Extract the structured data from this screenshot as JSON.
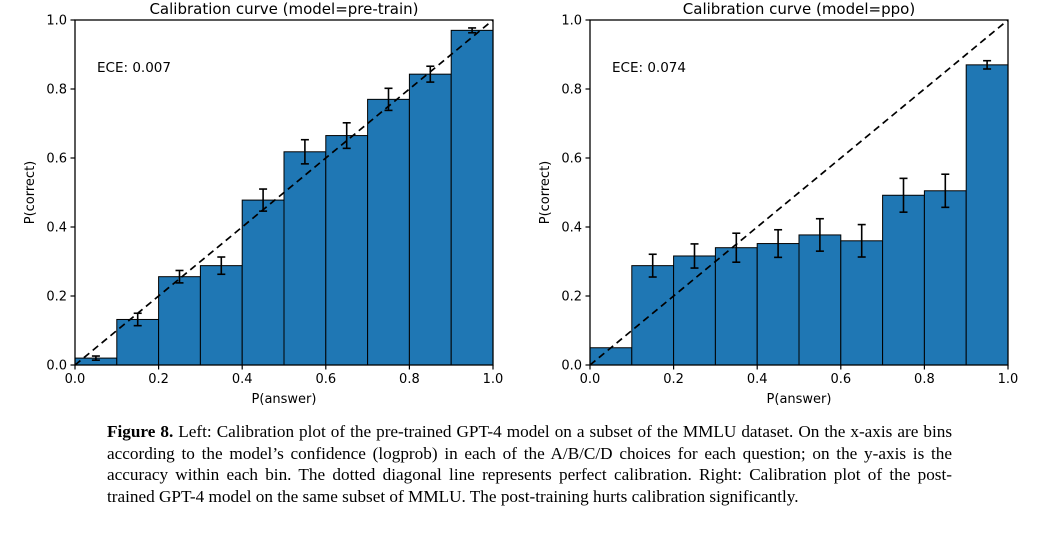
{
  "figure": {
    "label": "Figure 8.",
    "caption": "Left: Calibration plot of the pre-trained GPT-4 model on a subset of the MMLU dataset. On the x-axis are bins according to the model’s confidence (logprob) in each of the A/B/C/D choices for each question; on the y-axis is the accuracy within each bin. The dotted diagonal line represents perfect calibration. Right: Calibration plot of the post-trained GPT-4 model on the same subset of MMLU. The post-training hurts calibration significantly."
  },
  "colors": {
    "bar_fill": "#1f77b4",
    "bar_edge": "#000000",
    "diagonal": "#000000",
    "text": "#000000"
  },
  "chart_data": [
    {
      "type": "bar",
      "title": "Calibration curve (model=pre-train)",
      "annotation": "ECE: 0.007",
      "xlabel": "P(answer)",
      "ylabel": "P(correct)",
      "xlim": [
        0,
        1
      ],
      "ylim": [
        0,
        1
      ],
      "grid": false,
      "diagonal_reference_line": true,
      "bin_edges": [
        0.0,
        0.1,
        0.2,
        0.3,
        0.4,
        0.5,
        0.6,
        0.7,
        0.8,
        0.9,
        1.0
      ],
      "values": [
        0.02,
        0.132,
        0.256,
        0.288,
        0.478,
        0.618,
        0.665,
        0.77,
        0.843,
        0.97
      ],
      "errors": [
        0.006,
        0.018,
        0.018,
        0.025,
        0.032,
        0.035,
        0.037,
        0.032,
        0.023,
        0.007
      ],
      "xticks": [
        "0.0",
        "0.2",
        "0.4",
        "0.6",
        "0.8",
        "1.0"
      ],
      "yticks": [
        "0.0",
        "0.2",
        "0.4",
        "0.6",
        "0.8",
        "1.0"
      ]
    },
    {
      "type": "bar",
      "title": "Calibration curve (model=ppo)",
      "annotation": "ECE: 0.074",
      "xlabel": "P(answer)",
      "ylabel": "P(correct)",
      "xlim": [
        0,
        1
      ],
      "ylim": [
        0,
        1
      ],
      "grid": false,
      "diagonal_reference_line": true,
      "bin_edges": [
        0.0,
        0.1,
        0.2,
        0.3,
        0.4,
        0.5,
        0.6,
        0.7,
        0.8,
        0.9,
        1.0
      ],
      "values": [
        0.05,
        0.288,
        0.316,
        0.34,
        0.352,
        0.377,
        0.36,
        0.492,
        0.505,
        0.87
      ],
      "errors": [
        0,
        0.033,
        0.035,
        0.042,
        0.04,
        0.047,
        0.047,
        0.049,
        0.048,
        0.012
      ],
      "xticks": [
        "0.0",
        "0.2",
        "0.4",
        "0.6",
        "0.8",
        "1.0"
      ],
      "yticks": [
        "0.0",
        "0.2",
        "0.4",
        "0.6",
        "0.8",
        "1.0"
      ]
    }
  ]
}
